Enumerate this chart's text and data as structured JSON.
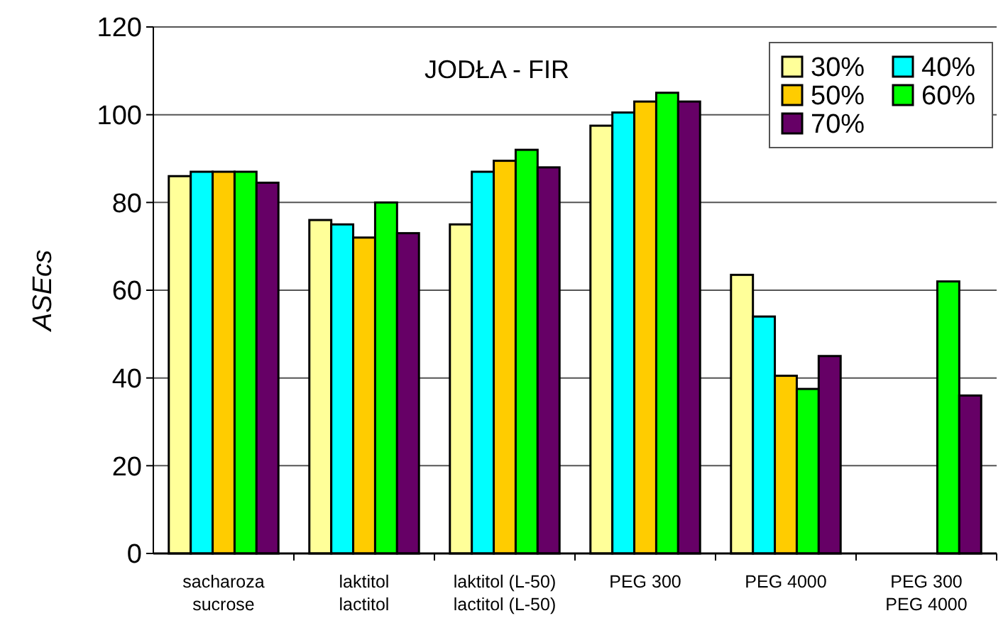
{
  "chart_data": {
    "type": "bar",
    "title": "JODŁA - FIR",
    "ylabel": "ASEcs",
    "categories": [
      "sacharoza\nsucrose",
      "laktitol\nlactitol",
      "laktitol (L-50)\nlactitol (L-50)",
      "PEG 300",
      "PEG 4000",
      "PEG 300\nPEG 4000"
    ],
    "series": [
      {
        "name": "30%",
        "color": "#ffff99",
        "values": [
          86,
          76,
          75,
          97.5,
          63.5,
          null
        ]
      },
      {
        "name": "40%",
        "color": "#00ffff",
        "values": [
          87,
          75,
          87,
          100.5,
          54,
          null
        ]
      },
      {
        "name": "50%",
        "color": "#ffcc00",
        "values": [
          87,
          72,
          89.5,
          103,
          40.5,
          null
        ]
      },
      {
        "name": "60%",
        "color": "#00ff00",
        "values": [
          87,
          80,
          92,
          105,
          37.5,
          62
        ]
      },
      {
        "name": "70%",
        "color": "#660066",
        "values": [
          84.5,
          73,
          88,
          103,
          45,
          36
        ]
      }
    ],
    "ylim": [
      0,
      120
    ],
    "yticks": [
      0,
      20,
      40,
      60,
      80,
      100,
      120
    ],
    "grid": "y",
    "legend": "top right"
  }
}
